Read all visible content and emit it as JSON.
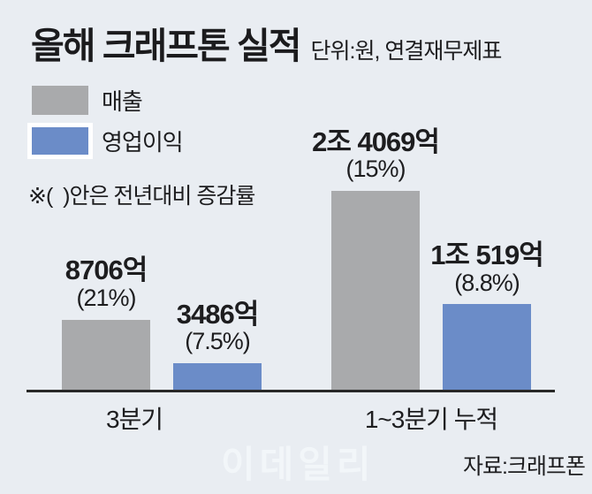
{
  "title": "올해 크래프톤 실적",
  "subtitle": "단위:원, 연결재무제표",
  "note": "※(  )안은 전년대비 증감률",
  "legend": {
    "revenue_label": "매출",
    "profit_label": "영업이익"
  },
  "watermark": "이데일리",
  "source": "자료:크래프폰",
  "colors": {
    "background": "#e9edf2",
    "revenue_bar": "#a9aaac",
    "profit_bar": "#6b8cc8",
    "axis": "#282828",
    "text": "#1d1d1f",
    "watermark": "#f2f6f9"
  },
  "chart_data": {
    "type": "bar",
    "title": "올해 크래프톤 실적",
    "unit": "억원",
    "categories": [
      "3분기",
      "1~3분기 누적"
    ],
    "series": [
      {
        "name": "매출",
        "values_eok": [
          8706,
          24069
        ],
        "value_labels": [
          "8706억",
          "2조 4069억"
        ],
        "pct_labels": [
          "(21%)",
          "(15%)"
        ]
      },
      {
        "name": "영업이익",
        "values_eok": [
          3486,
          10519
        ],
        "value_labels": [
          "3486억",
          "1조 519억"
        ],
        "pct_labels": [
          "(7.5%)",
          "(8.8%)"
        ]
      }
    ],
    "ylim": [
      0,
      24069
    ],
    "legend_position": "top-left",
    "grid": false
  }
}
